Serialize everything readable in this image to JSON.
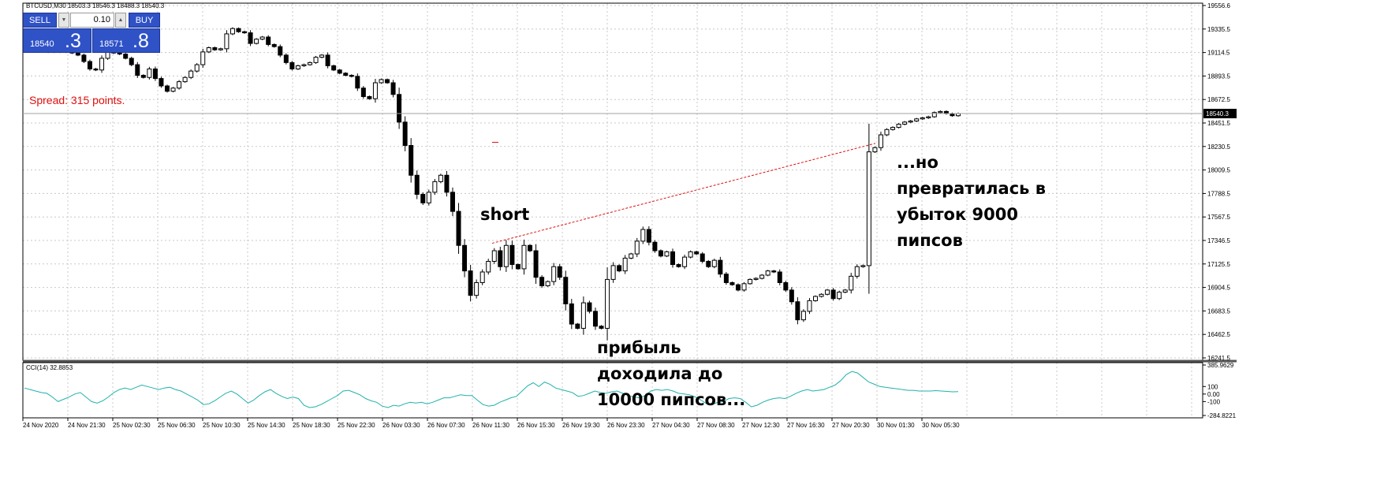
{
  "chart_title": "BTCUSD,M30  18503.3 18546.3 18488.3 18540.3",
  "trade_panel": {
    "sell_label": "SELL",
    "buy_label": "BUY",
    "lot": "0.10",
    "bid_small": "18540",
    "bid_big": ".3",
    "ask_small": "18571",
    "ask_big": ".8",
    "down_arrow": "▼",
    "up_arrow": "▲"
  },
  "spread_text": "Spread: 315 points.",
  "annotations": {
    "short": "short",
    "profit": [
      "прибыль",
      "доходила до",
      "10000 пипсов..."
    ],
    "loss": [
      "...но",
      "превратилась в",
      "убыток 9000",
      "пипсов"
    ]
  },
  "indicator_label": "CCI(14) 32.8853",
  "colors": {
    "background": "#ffffff",
    "grid": "#c8c8c8",
    "candle": "#000000",
    "bid_line": "#a0a0a0",
    "trade_line": "#e01010",
    "cci_line": "#20b2aa",
    "panel_blue": "#2f52c7",
    "spread_text": "#e01010"
  },
  "chart_data": [
    {
      "type": "candlestick",
      "symbol": "BTCUSD",
      "timeframe": "M30",
      "ylim": [
        16241.5,
        19556.6
      ],
      "y_ticks": [
        "19556.6",
        "19335.5",
        "19114.5",
        "18893.5",
        "18672.5",
        "18451.5",
        "18230.5",
        "18009.5",
        "17788.5",
        "17567.5",
        "17346.5",
        "17125.5",
        "16904.5",
        "16683.5",
        "16462.5",
        "16241.5"
      ],
      "x_ticks": [
        "24 Nov 2020",
        "24 Nov 21:30",
        "25 Nov 02:30",
        "25 Nov 06:30",
        "25 Nov 10:30",
        "25 Nov 14:30",
        "25 Nov 18:30",
        "25 Nov 22:30",
        "26 Nov 03:30",
        "26 Nov 07:30",
        "26 Nov 11:30",
        "26 Nov 15:30",
        "26 Nov 19:30",
        "26 Nov 23:30",
        "27 Nov 04:30",
        "27 Nov 08:30",
        "27 Nov 12:30",
        "27 Nov 16:30",
        "27 Nov 20:30",
        "30 Nov 01:30",
        "30 Nov 05:30"
      ],
      "bid_price": 18540.3,
      "trade_line": {
        "from": 17320,
        "to": 18260
      },
      "prices": [
        19160,
        19150,
        19140,
        19130,
        19120,
        19130,
        19120,
        19140,
        19110,
        19090,
        19030,
        18960,
        18950,
        19060,
        19120,
        19110,
        19100,
        19060,
        19000,
        18900,
        18880,
        18960,
        18870,
        18800,
        18750,
        18780,
        18840,
        18880,
        18940,
        19000,
        19120,
        19160,
        19140,
        19150,
        19290,
        19340,
        19310,
        19300,
        19200,
        19240,
        19260,
        19190,
        19170,
        19090,
        19020,
        18960,
        18990,
        19000,
        19020,
        19070,
        19090,
        18990,
        18950,
        18920,
        18900,
        18890,
        18780,
        18700,
        18680,
        18830,
        18860,
        18830,
        18720,
        18460,
        18240,
        17960,
        17780,
        17700,
        17800,
        17900,
        17960,
        17800,
        17620,
        17300,
        17060,
        16830,
        16950,
        17050,
        17150,
        17250,
        17100,
        17300,
        17120,
        17080,
        17300,
        17250,
        17000,
        16920,
        16960,
        17100,
        17000,
        16750,
        16560,
        16520,
        16760,
        16680,
        16540,
        16520,
        16980,
        17110,
        17060,
        17180,
        17220,
        17340,
        17450,
        17330,
        17250,
        17200,
        17240,
        17120,
        17100,
        17190,
        17240,
        17220,
        17150,
        17100,
        17160,
        17030,
        16950,
        16930,
        16880,
        16940,
        16980,
        16990,
        17020,
        17060,
        17050,
        16950,
        16880,
        16770,
        16600,
        16680,
        16780,
        16820,
        16840,
        16880,
        16800,
        16860,
        16880,
        17010,
        17100,
        17110,
        18180,
        18220,
        18340,
        18390,
        18410,
        18440,
        18460,
        18470,
        18490,
        18500,
        18510,
        18550,
        18560,
        18540,
        18520,
        18540
      ]
    },
    {
      "type": "line",
      "name": "CCI(14)",
      "ylim": [
        -284.8221,
        385.9629
      ],
      "y_ticks": [
        "385.9629",
        "100",
        "0.00",
        "-100",
        "-284.8221"
      ],
      "cci": [
        80,
        60,
        40,
        20,
        10,
        -40,
        -100,
        -70,
        -40,
        0,
        20,
        -40,
        -100,
        -120,
        -90,
        -40,
        20,
        60,
        80,
        60,
        90,
        120,
        100,
        80,
        60,
        80,
        90,
        60,
        40,
        0,
        -40,
        -80,
        -140,
        -130,
        -90,
        -40,
        10,
        40,
        0,
        -60,
        -120,
        -80,
        -20,
        30,
        60,
        10,
        -30,
        -60,
        -40,
        -60,
        -150,
        -180,
        -170,
        -140,
        -100,
        -60,
        -20,
        40,
        50,
        20,
        -10,
        -60,
        -90,
        -110,
        -160,
        -180,
        -150,
        -160,
        -130,
        -110,
        -120,
        -110,
        -130,
        -110,
        -80,
        -50,
        -50,
        -30,
        -10,
        -20,
        -20,
        -80,
        -140,
        -160,
        -150,
        -110,
        -80,
        -50,
        -30,
        40,
        110,
        150,
        100,
        160,
        130,
        80,
        60,
        40,
        20,
        -30,
        -20,
        10,
        40,
        20,
        10,
        30,
        40,
        10,
        -20,
        -40,
        -50,
        -20,
        40,
        60,
        50,
        60,
        40,
        10,
        0,
        -10,
        -40,
        -80,
        -130,
        -140,
        -110,
        -100,
        -60,
        -50,
        -60,
        -110,
        -170,
        -150,
        -110,
        -80,
        -60,
        -50,
        -60,
        -30,
        10,
        40,
        60,
        40,
        50,
        60,
        90,
        120,
        180,
        260,
        300,
        280,
        220,
        160,
        130,
        100,
        90,
        80,
        70,
        60,
        50,
        50,
        40,
        40,
        40,
        45,
        40,
        35,
        30,
        33
      ]
    }
  ]
}
